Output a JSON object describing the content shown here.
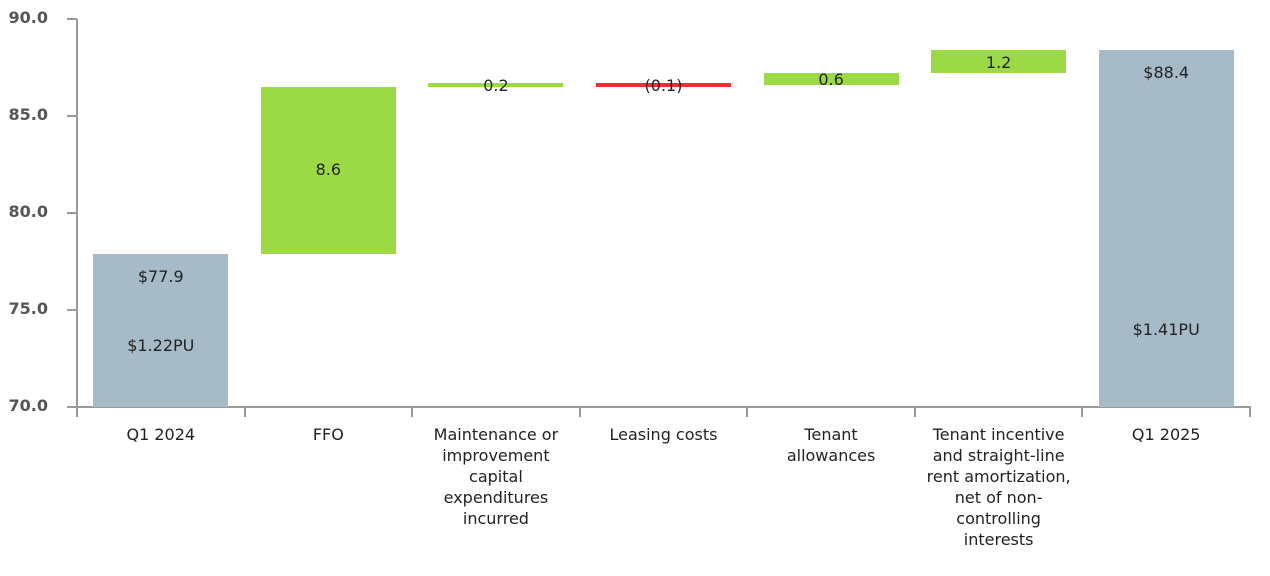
{
  "chart_data": {
    "type": "bar",
    "subtype": "waterfall",
    "title": "",
    "xlabel": "",
    "ylabel": "",
    "ylim": [
      70.0,
      90.0
    ],
    "yticks": [
      "90.0",
      "85.0",
      "80.0",
      "75.0",
      "70.0"
    ],
    "grid": false,
    "legend": null,
    "categories": [
      "Q1 2024",
      "FFO",
      "Maintenance or improvement capital expenditures incurred",
      "Leasing costs",
      "Tenant allowances",
      "Tenant incentive and straight-line rent amortization, net of non-controlling interests",
      "Q1 2025"
    ],
    "category_lines": [
      [
        "Q1 2024"
      ],
      [
        "FFO"
      ],
      [
        "Maintenance or",
        "improvement",
        "capital",
        "expenditures",
        "incurred"
      ],
      [
        "Leasing costs"
      ],
      [
        "Tenant",
        "allowances"
      ],
      [
        "Tenant incentive",
        "and straight-line",
        "rent amortization,",
        "net of non-",
        "controlling",
        "interests"
      ],
      [
        "Q1 2025"
      ]
    ],
    "bars": [
      {
        "kind": "total",
        "base": 70.0,
        "top": 77.9,
        "value": 77.9,
        "label": "$77.9",
        "sublabel": "$1.22PU",
        "color": "#a6bac8"
      },
      {
        "kind": "increase",
        "base": 77.9,
        "top": 86.5,
        "value": 8.6,
        "label": "8.6",
        "color": "#9bda45"
      },
      {
        "kind": "increase",
        "base": 86.5,
        "top": 86.7,
        "value": 0.2,
        "label": "0.2",
        "color": "#9bda45"
      },
      {
        "kind": "decrease",
        "base": 86.6,
        "top": 86.7,
        "value": -0.1,
        "label": "(0.1)",
        "color": "#e8302e"
      },
      {
        "kind": "increase",
        "base": 86.6,
        "top": 87.2,
        "value": 0.6,
        "label": "0.6",
        "color": "#9bda45"
      },
      {
        "kind": "increase",
        "base": 87.2,
        "top": 88.4,
        "value": 1.2,
        "label": "1.2",
        "color": "#9bda45"
      },
      {
        "kind": "total",
        "base": 70.0,
        "top": 88.4,
        "value": 88.4,
        "label": "$88.4",
        "sublabel": "$1.41PU",
        "color": "#a6bac8"
      }
    ],
    "values": [
      77.9,
      8.6,
      0.2,
      -0.1,
      0.6,
      1.2,
      88.4
    ]
  }
}
